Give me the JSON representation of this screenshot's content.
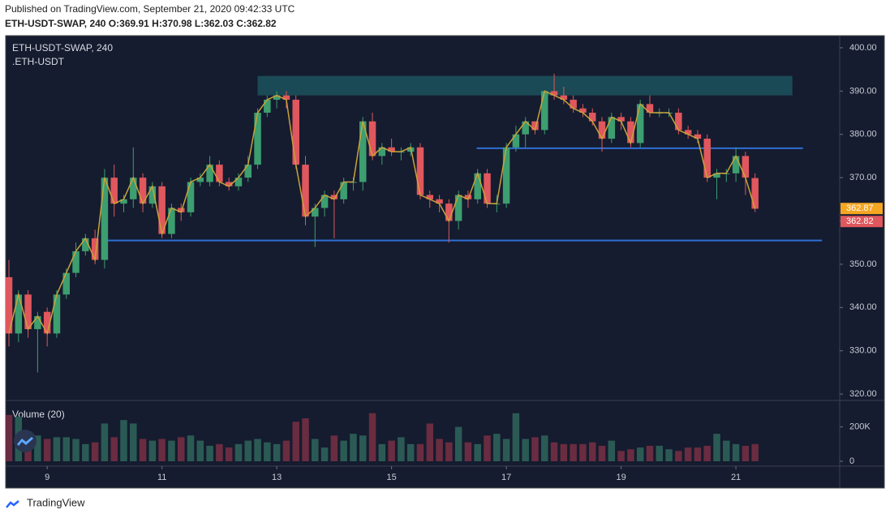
{
  "header": {
    "published": "Published on TradingView.com, September 21, 2020 09:42:33 UTC",
    "symbol_line": "ETH-USDT-SWAP, 240 O:369.91 H:370.98 L:362.03 C:362.82"
  },
  "footer": {
    "brand": "TradingView"
  },
  "chart_data": {
    "type": "candlestick",
    "legend": {
      "symbol": "ETH-USDT-SWAP, 240",
      "source": ".ETH-USDT"
    },
    "up_color": "#3d9e70",
    "down_color": "#e0575d",
    "line_color": "#c9a23a",
    "x": [
      0,
      1,
      2,
      3,
      4,
      5,
      6,
      7,
      8,
      9,
      10,
      11,
      12,
      13,
      14,
      15,
      16,
      17,
      18,
      19,
      20,
      21,
      22,
      23,
      24,
      25,
      26,
      27,
      28,
      29,
      30,
      31,
      32,
      33,
      34,
      35,
      36,
      37,
      38,
      39,
      40,
      41,
      42,
      43,
      44,
      45,
      46,
      47,
      48,
      49,
      50,
      51,
      52,
      53,
      54,
      55,
      56,
      57,
      58,
      59,
      60,
      61,
      62,
      63,
      64,
      65,
      66,
      67,
      68,
      69,
      70,
      71,
      72,
      73,
      74,
      75,
      76,
      77,
      78
    ],
    "open": [
      347,
      334,
      343,
      335,
      339,
      334,
      343,
      348,
      353,
      356,
      351,
      370,
      364,
      365,
      370,
      364,
      368,
      357,
      363,
      362,
      369,
      369,
      373,
      369,
      368,
      370,
      373,
      385,
      388,
      389,
      388,
      373,
      361,
      363,
      366,
      365,
      369,
      369,
      383,
      375,
      377,
      376,
      376,
      377,
      366,
      365,
      364,
      360,
      366,
      365,
      371,
      364,
      364,
      377,
      380,
      383,
      381,
      390,
      389,
      388,
      386,
      385,
      383,
      379,
      384,
      383,
      378,
      387,
      385,
      385,
      385,
      381,
      380,
      379,
      370,
      371,
      371,
      375,
      369.91
    ],
    "high": [
      351,
      344,
      344,
      339,
      340,
      344,
      349,
      355,
      357,
      358,
      372,
      373,
      366,
      377,
      371,
      369,
      369,
      364,
      364,
      370,
      371,
      375,
      374,
      370,
      371,
      375,
      386,
      389,
      390,
      390,
      389,
      375,
      364,
      367,
      367,
      370,
      370,
      384,
      385,
      378,
      379,
      377,
      378,
      378,
      367,
      366,
      365,
      367,
      367,
      372,
      372,
      366,
      378,
      382,
      384,
      383,
      390,
      394,
      391,
      389,
      387,
      386,
      384,
      385,
      385,
      384,
      388,
      389,
      386,
      386,
      386,
      382,
      381,
      380,
      372,
      372,
      377,
      376,
      370.98
    ],
    "low": [
      331,
      332,
      333,
      325,
      331,
      333,
      342,
      347,
      352,
      350,
      349,
      361,
      362,
      363,
      362,
      363,
      356,
      356,
      360,
      361,
      368,
      368,
      368,
      367,
      367,
      369,
      372,
      384,
      386,
      386,
      372,
      359,
      354,
      361,
      356,
      364,
      367,
      367,
      374,
      373,
      375,
      374,
      375,
      365,
      363,
      362,
      355,
      358,
      363,
      364,
      363,
      362,
      363,
      376,
      377,
      380,
      380,
      388,
      387,
      385,
      384,
      382,
      376,
      378,
      381,
      377,
      377,
      384,
      384,
      384,
      380,
      379,
      378,
      369,
      365,
      369,
      369,
      366,
      362.03
    ],
    "close": [
      334,
      343,
      335,
      338,
      334,
      343,
      348,
      353,
      356,
      351,
      370,
      364,
      365,
      370,
      364,
      368,
      357,
      363,
      362,
      369,
      370,
      373,
      369,
      368,
      370,
      373,
      385,
      388,
      389,
      388,
      373,
      361,
      363,
      366,
      365,
      369,
      369,
      383,
      375,
      377,
      376,
      376,
      377,
      366,
      365,
      364,
      360,
      366,
      365,
      371,
      364,
      364,
      377,
      380,
      383,
      381,
      390,
      389,
      388,
      386,
      385,
      383,
      379,
      384,
      383,
      378,
      387,
      385,
      385,
      385,
      381,
      380,
      379,
      370,
      371,
      371,
      375,
      370,
      362.82
    ],
    "volume_title": "Volume (20)",
    "volume": [
      270000,
      260000,
      120000,
      150000,
      130000,
      140000,
      140000,
      130000,
      100000,
      110000,
      220000,
      140000,
      240000,
      220000,
      130000,
      120000,
      130000,
      120000,
      140000,
      150000,
      120000,
      90000,
      100000,
      80000,
      100000,
      120000,
      130000,
      110000,
      100000,
      120000,
      230000,
      250000,
      130000,
      80000,
      150000,
      120000,
      160000,
      150000,
      280000,
      100000,
      120000,
      140000,
      100000,
      100000,
      220000,
      130000,
      110000,
      200000,
      110000,
      100000,
      150000,
      160000,
      130000,
      280000,
      130000,
      140000,
      150000,
      110000,
      100000,
      100000,
      100000,
      110000,
      90000,
      120000,
      60000,
      70000,
      80000,
      90000,
      90000,
      70000,
      60000,
      80000,
      80000,
      90000,
      160000,
      120000,
      100000,
      90000,
      100000
    ],
    "vol_up_color": "#2b5a55",
    "vol_down_color": "#6a2c40",
    "xlim": [
      -0.34,
      86.85
    ],
    "xticks": [
      {
        "value": 4,
        "label": "9"
      },
      {
        "value": 16,
        "label": "11"
      },
      {
        "value": 28,
        "label": "13"
      },
      {
        "value": 40,
        "label": "15"
      },
      {
        "value": 52,
        "label": "17"
      },
      {
        "value": 64,
        "label": "19"
      },
      {
        "value": 76,
        "label": "21"
      }
    ],
    "ylim": [
      318.9,
      402.8
    ],
    "yticks": [
      {
        "value": 320,
        "label": "320.00"
      },
      {
        "value": 330,
        "label": "330.00"
      },
      {
        "value": 340,
        "label": "340.00"
      },
      {
        "value": 350,
        "label": "350.00"
      },
      {
        "value": 360,
        "label": "360.00"
      },
      {
        "value": 370,
        "label": "370.00"
      },
      {
        "value": 380,
        "label": "380.00"
      },
      {
        "value": 390,
        "label": "390.00"
      },
      {
        "value": 400,
        "label": "400.00"
      }
    ],
    "vol_ylim": [
      0,
      340000
    ],
    "vol_yticks": [
      {
        "value": 200000,
        "label": "200K"
      },
      0
    ],
    "grid": false,
    "price_labels": [
      {
        "value": 362.87,
        "color": "#f5a623"
      },
      {
        "value": 362.82,
        "color": "#e0575d"
      }
    ],
    "drawings": [
      {
        "type": "zone",
        "low": 389,
        "high": 393.5,
        "from": 26,
        "to": 81.9,
        "color": "#1a4a55"
      },
      {
        "type": "hline",
        "price": 376.8,
        "from": 48.9,
        "to": 83,
        "color": "#2f6fd6"
      },
      {
        "type": "hline",
        "price": 355.5,
        "from": 9.9,
        "to": 85,
        "color": "#2f6fd6"
      }
    ]
  }
}
